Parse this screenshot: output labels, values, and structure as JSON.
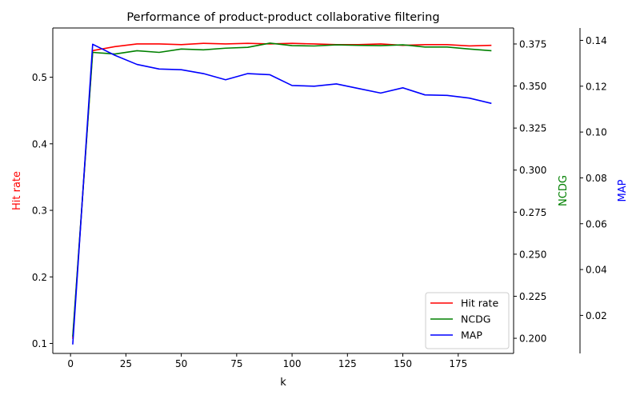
{
  "chart_data": {
    "type": "line",
    "title": "Performance of product-product collaborative filtering",
    "xlabel": "k",
    "xlim": [
      -8,
      200
    ],
    "x_ticks": [
      0,
      25,
      50,
      75,
      100,
      125,
      150,
      175
    ],
    "x": [
      1,
      10,
      20,
      30,
      40,
      50,
      60,
      70,
      80,
      90,
      100,
      110,
      120,
      130,
      140,
      150,
      160,
      170,
      180,
      190
    ],
    "axes": [
      {
        "id": "hit",
        "label": "Hit rate",
        "color": "#ff0000",
        "side": "left",
        "ylim": [
          0.085,
          0.574
        ],
        "ticks": [
          0.1,
          0.2,
          0.3,
          0.4,
          0.5
        ],
        "tick_labels": [
          "0.1",
          "0.2",
          "0.3",
          "0.4",
          "0.5"
        ]
      },
      {
        "id": "ncdg",
        "label": "NCDG",
        "color": "#008000",
        "side": "right",
        "ylim": [
          0.191,
          0.3845
        ],
        "ticks": [
          0.2,
          0.225,
          0.25,
          0.275,
          0.3,
          0.325,
          0.35,
          0.375
        ],
        "tick_labels": [
          "0.200",
          "0.225",
          "0.250",
          "0.275",
          "0.300",
          "0.325",
          "0.350",
          "0.375"
        ]
      },
      {
        "id": "map",
        "label": "MAP",
        "color": "#0000ff",
        "side": "right-offset",
        "ylim": [
          0.0034,
          0.1454
        ],
        "ticks": [
          0.02,
          0.04,
          0.06,
          0.08,
          0.1,
          0.12,
          0.14
        ],
        "tick_labels": [
          "0.02",
          "0.04",
          "0.06",
          "0.08",
          "0.10",
          "0.12",
          "0.14"
        ]
      }
    ],
    "series": [
      {
        "name": "Hit rate",
        "axis": "hit",
        "color": "#ff0000",
        "values": [
          0.107,
          0.54,
          0.546,
          0.55,
          0.55,
          0.549,
          0.551,
          0.55,
          0.551,
          0.55,
          0.551,
          0.55,
          0.549,
          0.549,
          0.55,
          0.548,
          0.549,
          0.549,
          0.547,
          0.548
        ]
      },
      {
        "name": "NCDG",
        "axis": "ncdg",
        "color": "#008000",
        "values": [
          0.201,
          0.37,
          0.369,
          0.371,
          0.37,
          0.372,
          0.3715,
          0.3725,
          0.373,
          0.3755,
          0.374,
          0.3738,
          0.3745,
          0.3742,
          0.374,
          0.3745,
          0.3732,
          0.3732,
          0.372,
          0.371
        ]
      },
      {
        "name": "MAP",
        "axis": "map",
        "color": "#0000ff",
        "values": [
          0.0073,
          0.1383,
          0.1335,
          0.1295,
          0.1275,
          0.1272,
          0.1255,
          0.1228,
          0.1255,
          0.125,
          0.1203,
          0.12,
          0.121,
          0.119,
          0.117,
          0.1193,
          0.1162,
          0.116,
          0.1148,
          0.1125
        ]
      }
    ],
    "legend": {
      "position": "bottom-right",
      "entries": [
        "Hit rate",
        "NCDG",
        "MAP"
      ]
    },
    "grid": false
  }
}
